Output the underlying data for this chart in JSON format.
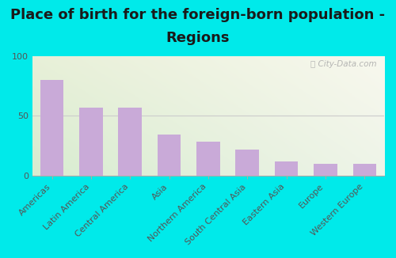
{
  "title_line1": "Place of birth for the foreign-born population -",
  "title_line2": "Regions",
  "categories": [
    "Americas",
    "Latin America",
    "Central America",
    "Asia",
    "Northern America",
    "South Central Asia",
    "Eastern Asia",
    "Europe",
    "Western Europe"
  ],
  "values": [
    80,
    57,
    57,
    34,
    28,
    22,
    12,
    10,
    10
  ],
  "bar_color": "#c9aad8",
  "bg_outer": "#00eaea",
  "bg_grad_topleft": "#d8ecd0",
  "bg_grad_bottomright": "#f8f8ee",
  "title_color": "#1a1a1a",
  "tick_color": "#555555",
  "grid_color": "#cccccc",
  "spine_color": "#aaaaaa",
  "ylim": [
    0,
    100
  ],
  "yticks": [
    0,
    50,
    100
  ],
  "title_fontsize": 13,
  "tick_fontsize": 8,
  "watermark": "ⓘ City-Data.com"
}
